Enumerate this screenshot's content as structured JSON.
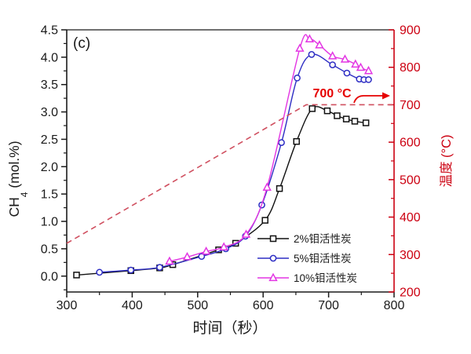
{
  "panel_label": "(c)",
  "annotation": {
    "text": "700 °C",
    "color": "#e60000"
  },
  "colors": {
    "axis_black": "#1a1a1a",
    "axis_red": "#cc0011",
    "temp_dashed": "#d05060",
    "series_2pct": "#111111",
    "series_5pct": "#2e2ec4",
    "series_10pct": "#e336e3"
  },
  "legend": [
    {
      "label": "2%钼活性炭",
      "color": "#111111",
      "marker": "square"
    },
    {
      "label": "5%钼活性炭",
      "color": "#2e2ec4",
      "marker": "circle"
    },
    {
      "label": "10%钼活性炭",
      "color": "#e336e3",
      "marker": "triangle"
    }
  ],
  "chart_data": {
    "type": "line",
    "title": "",
    "xlabel": "时间（秒）",
    "ylabel_left_parts": {
      "pre": "CH",
      "sub": "4",
      "post": " (mol.%)"
    },
    "ylabel_left": "CH4 (mol.%)",
    "ylabel_right": "温度 (°C)",
    "xlim": [
      300,
      800
    ],
    "ylim_left": [
      -0.29,
      4.5
    ],
    "ylim_right": [
      200,
      900
    ],
    "x_ticks": [
      "300",
      "400",
      "500",
      "600",
      "700",
      "800"
    ],
    "x_minor_ticks": [
      350,
      450,
      550,
      650,
      750
    ],
    "y_left_ticks": [
      "0.0",
      "0.5",
      "1.0",
      "1.5",
      "2.0",
      "2.5",
      "3.0",
      "3.5",
      "4.0",
      "4.5"
    ],
    "y_right_ticks": [
      "200",
      "300",
      "400",
      "500",
      "600",
      "700",
      "800",
      "900"
    ],
    "grid": false,
    "legend_position": "inside-bottom-right",
    "series": [
      {
        "name": "2%钼活性炭",
        "axis": "left",
        "color": "#111111",
        "marker": "square",
        "style": "solid",
        "points": [
          [
            315,
            0.02
          ],
          [
            398,
            0.1
          ],
          [
            442,
            0.15
          ],
          [
            462,
            0.21
          ],
          [
            532,
            0.48
          ],
          [
            558,
            0.6
          ],
          [
            603,
            1.02
          ],
          [
            625,
            1.6
          ],
          [
            651,
            2.46
          ],
          [
            675,
            3.06
          ],
          [
            698,
            3.02
          ],
          [
            713,
            2.93
          ],
          [
            727,
            2.87
          ],
          [
            740,
            2.83
          ],
          [
            757,
            2.8
          ]
        ]
      },
      {
        "name": "5%钼活性炭",
        "axis": "left",
        "color": "#2e2ec4",
        "marker": "circle",
        "style": "solid",
        "points": [
          [
            350,
            0.07
          ],
          [
            398,
            0.11
          ],
          [
            442,
            0.16
          ],
          [
            506,
            0.36
          ],
          [
            543,
            0.5
          ],
          [
            573,
            0.73
          ],
          [
            598,
            1.3
          ],
          [
            628,
            2.44
          ],
          [
            652,
            3.62
          ],
          [
            674,
            4.05
          ],
          [
            706,
            3.86
          ],
          [
            728,
            3.71
          ],
          [
            747,
            3.6
          ],
          [
            754,
            3.59
          ],
          [
            761,
            3.59
          ]
        ]
      },
      {
        "name": "10%钼活性炭",
        "axis": "left",
        "color": "#e336e3",
        "marker": "triangle",
        "style": "solid",
        "points": [
          [
            457,
            0.27
          ],
          [
            484,
            0.35
          ],
          [
            513,
            0.45
          ],
          [
            540,
            0.53
          ],
          [
            574,
            0.76
          ],
          [
            606,
            1.62
          ],
          [
            656,
            4.16
          ],
          [
            671,
            4.33
          ],
          [
            686,
            4.22
          ],
          [
            706,
            4.02
          ],
          [
            725,
            3.96
          ],
          [
            741,
            3.87
          ],
          [
            749,
            3.81
          ],
          [
            761,
            3.75
          ]
        ]
      },
      {
        "name": "温度",
        "axis": "right",
        "color": "#d05060",
        "marker": "none",
        "style": "dashed",
        "points": [
          [
            300,
            330
          ],
          [
            666,
            700
          ],
          [
            800,
            700
          ]
        ]
      }
    ]
  }
}
